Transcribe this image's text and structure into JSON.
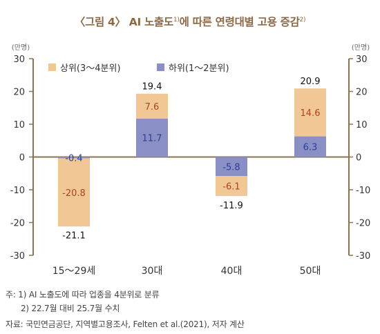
{
  "title": {
    "main": "〈그림 4〉 AI 노출도",
    "sup1": "1)",
    "rest": "에 따른 연령대별 고용 증감",
    "sup2": "2)"
  },
  "chart_data": {
    "type": "bar",
    "stacked": true,
    "categories": [
      "15～29세",
      "30대",
      "40대",
      "50대"
    ],
    "series": [
      {
        "name": "하위(1～2분위)",
        "values": [
          -0.4,
          11.7,
          -5.8,
          6.3
        ],
        "color": "#8a8fc6"
      },
      {
        "name": "상위(3～4분위)",
        "values": [
          -20.8,
          7.6,
          -6.1,
          14.6
        ],
        "color": "#f0c795"
      }
    ],
    "totals": [
      -21.1,
      19.4,
      -11.9,
      20.9
    ],
    "ylim": [
      -30,
      30
    ],
    "yticks": [
      30,
      20,
      10,
      0,
      -10,
      -20,
      -30
    ],
    "unit_left": "(만명)",
    "unit_right": "(만명)",
    "legend_position": "top-left",
    "grid": false,
    "axis_color": "#8c7355",
    "label_colors": {
      "lower": "#2d3f8f",
      "upper": "#b0441c",
      "total": "#111111"
    }
  },
  "notes": {
    "note1": "주: 1) AI 노출도에 따라 업종을 4분위로 분류",
    "note2": "2) 22.7월 대비 25.7월 수치",
    "source": "자료: 국민연금공단, 지역별고용조사, Felten et al.(2021), 저자 계산"
  }
}
